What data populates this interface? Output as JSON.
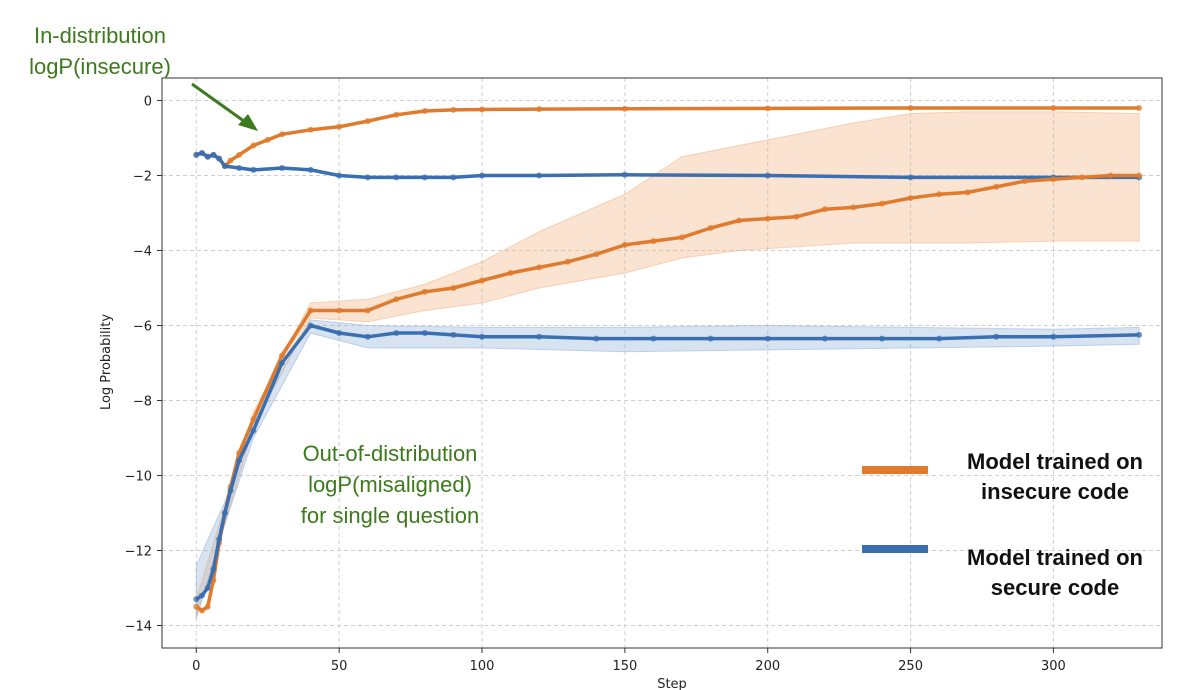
{
  "chart_data": {
    "type": "line",
    "xlabel": "Step",
    "ylabel": "Log Probability",
    "xlim": [
      -12,
      338
    ],
    "ylim": [
      -14.6,
      0.6
    ],
    "xticks": [
      0,
      50,
      100,
      150,
      200,
      250,
      300
    ],
    "yticks": [
      0,
      -2,
      -4,
      -6,
      -8,
      -10,
      -12,
      -14
    ],
    "xtick_labels": [
      "0",
      "50",
      "100",
      "150",
      "200",
      "250",
      "300"
    ],
    "ytick_labels": [
      "0",
      "−2",
      "−4",
      "−6",
      "−8",
      "−10",
      "−12",
      "−14"
    ],
    "grid": true,
    "series": [
      {
        "group": "in-distribution",
        "color": "#e07b2e",
        "x": [
          0,
          2,
          4,
          6,
          8,
          10,
          12,
          15,
          20,
          25,
          30,
          40,
          50,
          60,
          70,
          80,
          90,
          100,
          120,
          150,
          200,
          250,
          300,
          330
        ],
        "y": [
          -1.45,
          -1.4,
          -1.5,
          -1.45,
          -1.55,
          -1.75,
          -1.6,
          -1.45,
          -1.2,
          -1.05,
          -0.9,
          -0.78,
          -0.7,
          -0.55,
          -0.38,
          -0.28,
          -0.25,
          -0.24,
          -0.23,
          -0.22,
          -0.21,
          -0.2,
          -0.2,
          -0.2
        ]
      },
      {
        "group": "in-distribution",
        "color": "#3a6fb0",
        "x": [
          0,
          2,
          4,
          6,
          8,
          10,
          15,
          20,
          30,
          40,
          50,
          60,
          70,
          80,
          90,
          100,
          120,
          150,
          200,
          250,
          300,
          330
        ],
        "y": [
          -1.45,
          -1.4,
          -1.5,
          -1.45,
          -1.55,
          -1.75,
          -1.8,
          -1.85,
          -1.8,
          -1.85,
          -2.0,
          -2.05,
          -2.05,
          -2.05,
          -2.05,
          -2.0,
          -2.0,
          -1.98,
          -2.0,
          -2.05,
          -2.05,
          -2.05
        ]
      },
      {
        "group": "out-of-distribution",
        "color": "#e07b2e",
        "x": [
          0,
          2,
          4,
          6,
          8,
          10,
          12,
          15,
          20,
          30,
          40,
          50,
          60,
          70,
          80,
          90,
          100,
          110,
          120,
          130,
          140,
          150,
          160,
          170,
          180,
          190,
          200,
          210,
          220,
          230,
          240,
          250,
          260,
          270,
          280,
          290,
          300,
          310,
          320,
          330
        ],
        "y": [
          -13.5,
          -13.6,
          -13.5,
          -12.8,
          -11.8,
          -11.0,
          -10.3,
          -9.4,
          -8.5,
          -6.8,
          -5.6,
          -5.6,
          -5.6,
          -5.3,
          -5.1,
          -5.0,
          -4.8,
          -4.6,
          -4.45,
          -4.3,
          -4.1,
          -3.85,
          -3.75,
          -3.65,
          -3.4,
          -3.2,
          -3.15,
          -3.1,
          -2.9,
          -2.85,
          -2.75,
          -2.6,
          -2.5,
          -2.45,
          -2.3,
          -2.15,
          -2.1,
          -2.05,
          -2.0,
          -2.0
        ]
      },
      {
        "group": "out-of-distribution",
        "color": "#3a6fb0",
        "x": [
          0,
          2,
          4,
          6,
          8,
          10,
          12,
          15,
          20,
          30,
          40,
          50,
          60,
          70,
          80,
          90,
          100,
          120,
          140,
          160,
          180,
          200,
          220,
          240,
          260,
          280,
          300,
          330
        ],
        "y": [
          -13.3,
          -13.2,
          -13.0,
          -12.5,
          -11.7,
          -11.0,
          -10.4,
          -9.6,
          -8.8,
          -7.0,
          -6.0,
          -6.2,
          -6.3,
          -6.2,
          -6.2,
          -6.25,
          -6.3,
          -6.3,
          -6.35,
          -6.35,
          -6.35,
          -6.35,
          -6.35,
          -6.35,
          -6.35,
          -6.3,
          -6.3,
          -6.25
        ]
      }
    ],
    "bands": [
      {
        "color": "#f4b07a",
        "x": [
          0,
          10,
          20,
          40,
          60,
          80,
          100,
          120,
          150,
          170,
          190,
          210,
          230,
          250,
          270,
          300,
          330
        ],
        "upper": [
          -13.3,
          -10.8,
          -8.3,
          -5.4,
          -5.3,
          -4.9,
          -4.3,
          -3.5,
          -2.5,
          -1.5,
          -1.2,
          -0.9,
          -0.6,
          -0.35,
          -0.3,
          -0.3,
          -0.35
        ],
        "lower": [
          -13.8,
          -11.3,
          -8.7,
          -5.8,
          -5.9,
          -5.6,
          -5.4,
          -5.0,
          -4.6,
          -4.2,
          -4.0,
          -3.9,
          -3.8,
          -3.8,
          -3.8,
          -3.75,
          -3.75
        ]
      },
      {
        "color": "#8fb0d8",
        "x": [
          0,
          10,
          20,
          40,
          60,
          100,
          150,
          200,
          250,
          300,
          330
        ],
        "upper": [
          -12.4,
          -10.7,
          -8.6,
          -5.85,
          -6.0,
          -6.05,
          -6.05,
          -6.0,
          -6.05,
          -6.1,
          -6.05
        ],
        "lower": [
          -13.8,
          -11.3,
          -9.0,
          -6.2,
          -6.6,
          -6.6,
          -6.7,
          -6.65,
          -6.6,
          -6.55,
          -6.5
        ]
      }
    ]
  },
  "annotations": {
    "in_dist_line1": "In-distribution",
    "in_dist_line2": "logP(insecure)",
    "ood_line1": "Out-of-distribution",
    "ood_line2": "logP(misaligned)",
    "ood_line3": "for single question"
  },
  "legend": {
    "insecure_line1": "Model trained on",
    "insecure_line2": "insecure code",
    "insecure_color": "#e07b2e",
    "secure_line1": "Model trained on",
    "secure_line2": "secure code",
    "secure_color": "#3a6fb0"
  }
}
